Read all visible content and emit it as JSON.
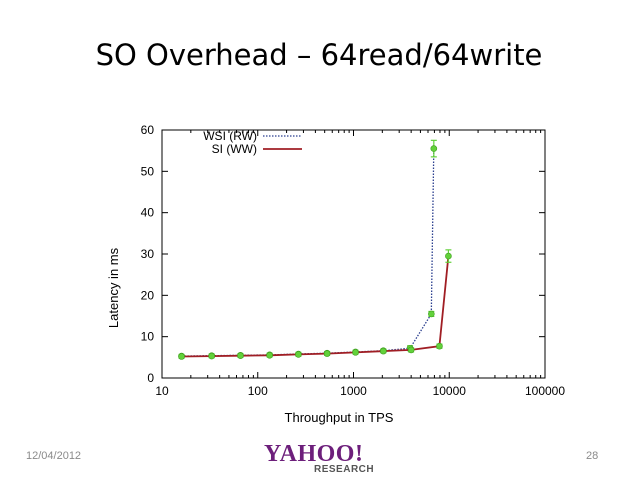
{
  "slide": {
    "title": "SO Overhead – 64read/64write",
    "date": "12/04/2012",
    "page_number": "28",
    "logo_main": "YAHOO!",
    "logo_sub": "RESEARCH"
  },
  "chart_data": {
    "type": "line",
    "xlabel": "Throughput in TPS",
    "ylabel": "Latency in ms",
    "x_scale": "log",
    "xlim": [
      10,
      100000
    ],
    "ylim": [
      0,
      60
    ],
    "x_ticks": [
      10,
      100,
      1000,
      10000,
      100000
    ],
    "x_tick_labels": [
      "10",
      "100",
      "1000",
      "10000",
      "100000"
    ],
    "y_ticks": [
      0,
      10,
      20,
      30,
      40,
      50,
      60
    ],
    "y_tick_labels": [
      "0",
      "10",
      "20",
      "30",
      "40",
      "50",
      "60"
    ],
    "legend_position": "top-left",
    "grid": false,
    "series": [
      {
        "name": "WSI (RW)",
        "style": "dotted",
        "color": "#2b3f8f",
        "x": [
          16,
          33,
          66,
          133,
          266,
          530,
          1050,
          2050,
          3900,
          6500,
          6900
        ],
        "y": [
          5.3,
          5.4,
          5.5,
          5.6,
          5.8,
          6.0,
          6.3,
          6.6,
          7.2,
          15.5,
          55.5
        ],
        "error": [
          0.4,
          0.4,
          0.4,
          0.4,
          0.4,
          0.4,
          0.4,
          0.4,
          0.6,
          0.6,
          2
        ]
      },
      {
        "name": "SI (WW)",
        "style": "solid",
        "color": "#a01e24",
        "x": [
          16,
          33,
          66,
          133,
          266,
          530,
          1050,
          2050,
          4000,
          7900,
          9800
        ],
        "y": [
          5.2,
          5.3,
          5.4,
          5.5,
          5.7,
          5.9,
          6.2,
          6.5,
          6.8,
          7.7,
          29.5
        ],
        "error": [
          0.4,
          0.4,
          0.4,
          0.4,
          0.4,
          0.4,
          0.4,
          0.4,
          0.5,
          0.5,
          1.5
        ]
      }
    ],
    "marker_color": "#62d13a"
  }
}
